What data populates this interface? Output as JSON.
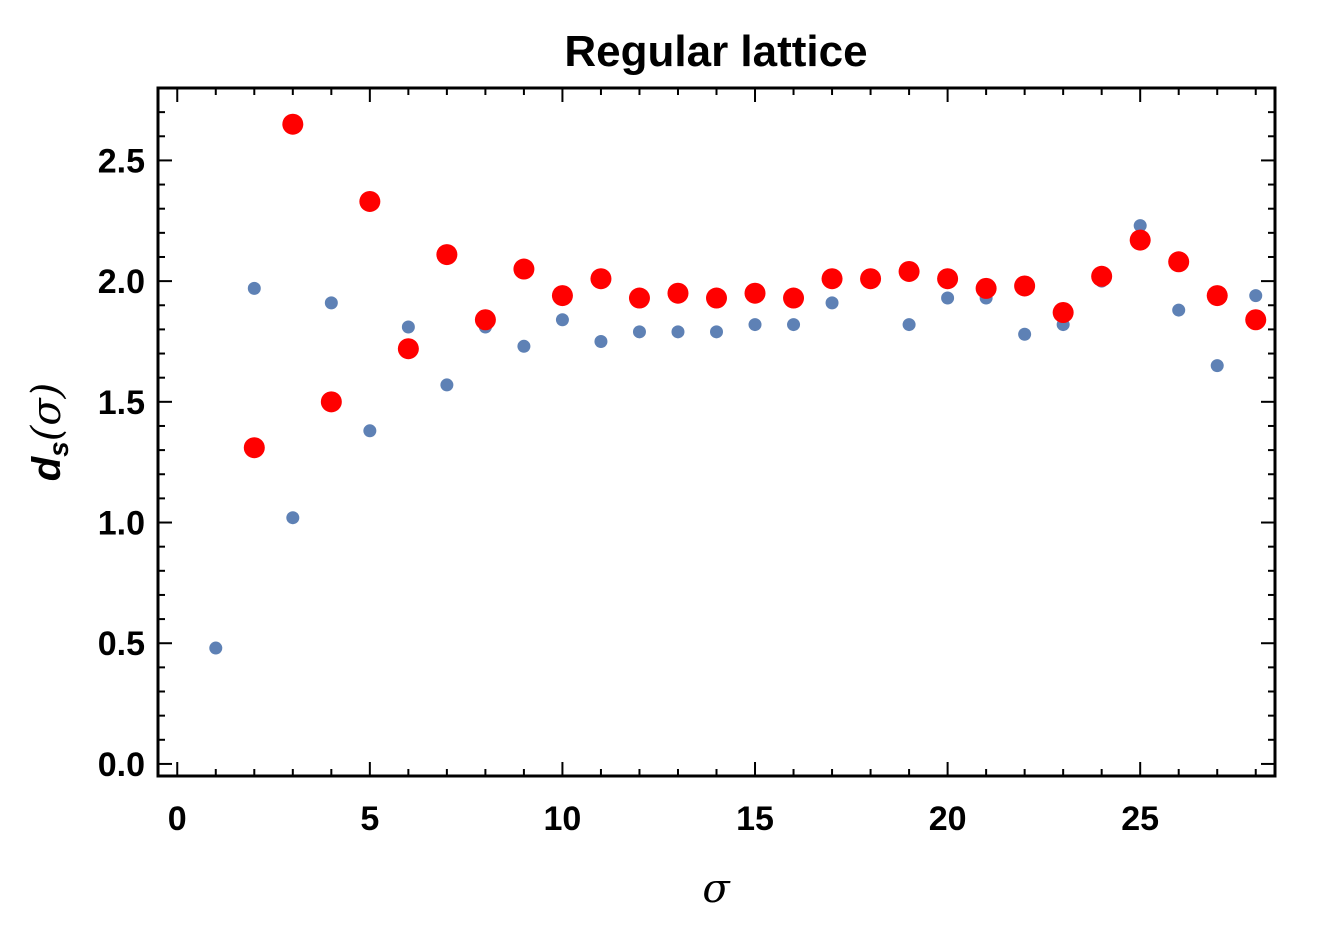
{
  "chart_data": {
    "type": "scatter",
    "title": "Regular lattice",
    "xlabel": "σ",
    "ylabel": {
      "main": "d",
      "subscript": "s",
      "open": "(",
      "symbol": "σ",
      "close": ")"
    },
    "xlim": [
      -0.5,
      28.5
    ],
    "ylim": [
      -0.05,
      2.8
    ],
    "x_ticks": [
      0,
      5,
      10,
      15,
      20,
      25
    ],
    "y_ticks": [
      0.0,
      0.5,
      1.0,
      1.5,
      2.0,
      2.5
    ],
    "x_tick_labels": [
      "0",
      "5",
      "10",
      "15",
      "20",
      "25"
    ],
    "y_tick_labels": [
      "0.0",
      "0.5",
      "1.0",
      "1.5",
      "2.0",
      "2.5"
    ],
    "grid": false,
    "frame": true,
    "series": [
      {
        "color": "#5e81b5",
        "marker": "small-dot",
        "x": [
          1,
          2,
          3,
          4,
          5,
          6,
          7,
          8,
          9,
          10,
          11,
          12,
          13,
          14,
          15,
          16,
          17,
          18,
          19,
          20,
          21,
          22,
          23,
          24,
          25,
          26,
          27,
          28
        ],
        "y": [
          0.48,
          1.97,
          1.02,
          1.91,
          1.38,
          1.81,
          1.57,
          1.81,
          1.73,
          1.84,
          1.75,
          1.79,
          1.79,
          1.79,
          1.82,
          1.82,
          1.91,
          2.0,
          1.82,
          1.93,
          1.93,
          1.78,
          1.82,
          2.0,
          2.23,
          1.88,
          1.65,
          1.94
        ]
      },
      {
        "color": "#ff0000",
        "marker": "large-dot",
        "x": [
          2,
          3,
          4,
          5,
          6,
          7,
          8,
          9,
          10,
          11,
          12,
          13,
          14,
          15,
          16,
          17,
          18,
          19,
          20,
          21,
          22,
          23,
          24,
          25,
          26,
          27,
          28
        ],
        "y": [
          1.31,
          2.65,
          1.5,
          2.33,
          1.72,
          2.11,
          1.84,
          2.05,
          1.94,
          2.01,
          1.93,
          1.95,
          1.93,
          1.95,
          1.93,
          2.01,
          2.01,
          2.04,
          2.01,
          1.97,
          1.98,
          1.87,
          2.02,
          2.17,
          2.08,
          1.94,
          1.84
        ]
      }
    ]
  }
}
